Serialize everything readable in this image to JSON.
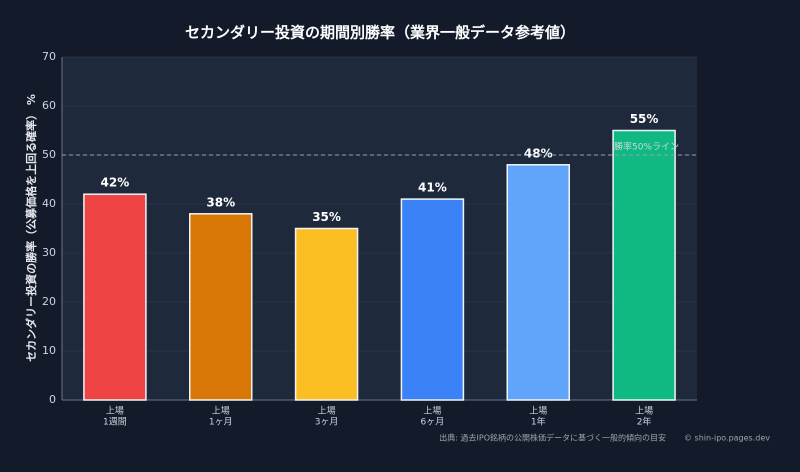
{
  "chart_data": {
    "type": "bar",
    "title": "セカンダリー投資の期間別勝率（業界一般データ参考値）",
    "y_label": "セカンダリー投資の勝率（公募価格を上回る確率） %",
    "categories": [
      [
        "上場",
        "1週間"
      ],
      [
        "上場",
        "1ヶ月"
      ],
      [
        "上場",
        "3ヶ月"
      ],
      [
        "上場",
        "6ヶ月"
      ],
      [
        "上場",
        "1年"
      ],
      [
        "上場",
        "2年"
      ]
    ],
    "values": [
      42,
      38,
      35,
      41,
      48,
      55
    ],
    "value_labels": [
      "42%",
      "38%",
      "35%",
      "41%",
      "48%",
      "55%"
    ],
    "colors": [
      "#ef4444",
      "#d97706",
      "#fbbf24",
      "#3b82f6",
      "#60a5fa",
      "#10b981"
    ],
    "ylim": [
      0,
      70
    ],
    "yticks": [
      0,
      10,
      20,
      30,
      40,
      50,
      60,
      70
    ],
    "grid": true,
    "reference_line": {
      "value": 50,
      "label": "勝率50%ライン"
    },
    "source": "出典: 過去IPO銘柄の公開株価データに基づく一般的傾向の目安",
    "credit": "© shin-ipo.pages.dev"
  }
}
